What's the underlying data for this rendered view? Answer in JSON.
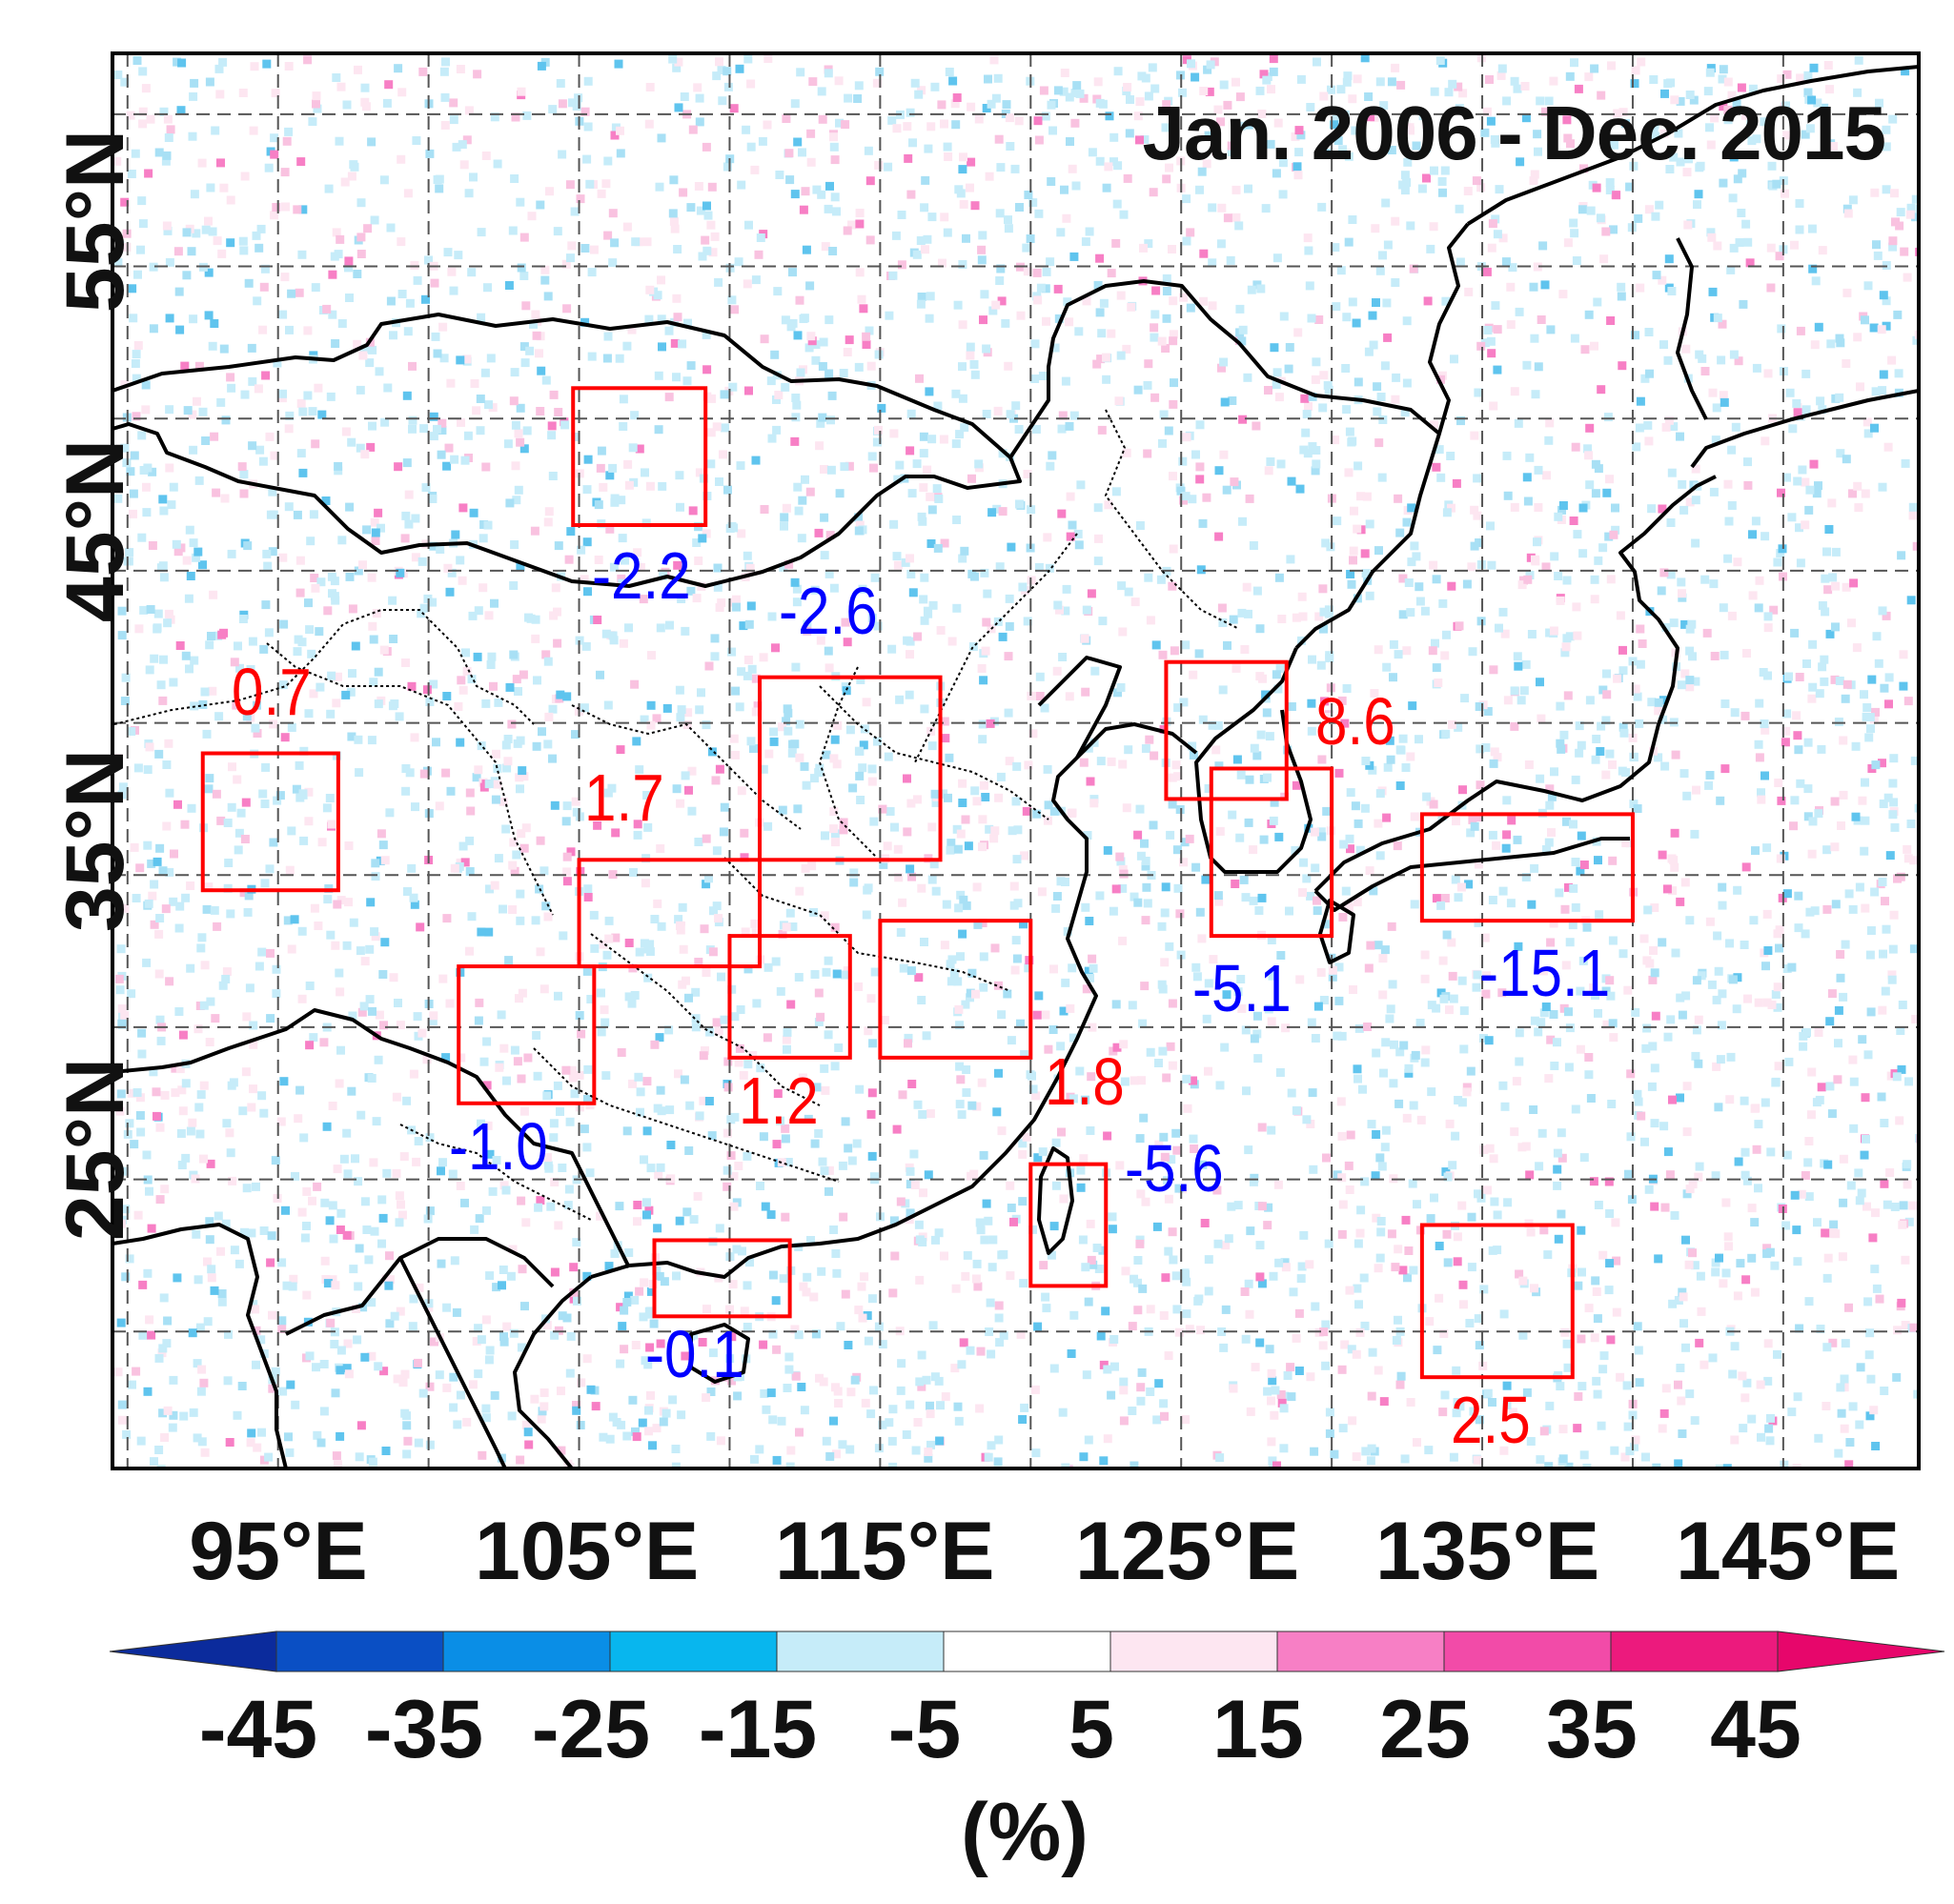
{
  "map": {
    "title": "Jan. 2006 - Dec. 2015",
    "lon_ticks": [
      "95°E",
      "105°E",
      "115°E",
      "125°E",
      "135°E",
      "145°E"
    ],
    "lat_ticks": [
      "55°N",
      "45°N",
      "35°N",
      "25°N"
    ],
    "extent": {
      "lon_min": 89.5,
      "lon_max": 149.5,
      "lat_min": 15.5,
      "lat_max": 62
    },
    "grid": true,
    "colors": {
      "positive_label": "#ff0000",
      "negative_label": "#0000ff",
      "box": "#ff0000",
      "coast": "#000000"
    }
  },
  "regions": [
    {
      "value": "-2.2",
      "sign": "negative",
      "lon": [
        104.8,
        109.2
      ],
      "lat": [
        46.5,
        51.0
      ]
    },
    {
      "value": "-2.6",
      "sign": "negative",
      "lon": [
        111.0,
        117.0
      ],
      "lat": [
        35.5,
        41.5
      ]
    },
    {
      "value": "0.7",
      "sign": "positive",
      "lon": [
        92.5,
        97.0
      ],
      "lat": [
        34.5,
        39.0
      ]
    },
    {
      "value": "1.7",
      "sign": "positive",
      "lon": [
        105.0,
        111.0
      ],
      "lat": [
        32.0,
        35.5
      ]
    },
    {
      "value": "8.6",
      "sign": "positive",
      "lon": [
        124.5,
        128.5
      ],
      "lat": [
        37.5,
        42.0
      ]
    },
    {
      "value": "-5.1",
      "sign": "negative",
      "lon": [
        126.0,
        130.0
      ],
      "lat": [
        33.0,
        38.5
      ]
    },
    {
      "value": "-15.1",
      "sign": "negative",
      "lon": [
        133.0,
        140.0
      ],
      "lat": [
        33.5,
        37.0
      ]
    },
    {
      "value": "-1.0",
      "sign": "negative",
      "lon": [
        101.0,
        105.5
      ],
      "lat": [
        27.5,
        32.0
      ]
    },
    {
      "value": "1.2",
      "sign": "positive",
      "lon": [
        110.0,
        114.0
      ],
      "lat": [
        29.0,
        33.0
      ]
    },
    {
      "value": "1.8",
      "sign": "positive",
      "lon": [
        115.0,
        120.0
      ],
      "lat": [
        29.0,
        33.5
      ]
    },
    {
      "value": "-0.1",
      "sign": "negative",
      "lon": [
        107.5,
        112.0
      ],
      "lat": [
        20.5,
        23.0
      ]
    },
    {
      "value": "-5.6",
      "sign": "negative",
      "lon": [
        120.0,
        122.5
      ],
      "lat": [
        21.5,
        25.5
      ]
    },
    {
      "value": "2.5",
      "sign": "positive",
      "lon": [
        133.0,
        138.0
      ],
      "lat": [
        18.5,
        23.5
      ]
    }
  ],
  "colorbar": {
    "ticks": [
      "-45",
      "-35",
      "-25",
      "-15",
      "-5",
      "5",
      "15",
      "25",
      "35",
      "45"
    ],
    "unit": "(%)",
    "colors": [
      "#0b2b9c",
      "#0a4fc4",
      "#0a8ee6",
      "#08b6ee",
      "#c6ecf9",
      "#ffffff",
      "#fde6f1",
      "#f77fc5",
      "#f24ba8",
      "#ec1a7d",
      "#e7066b"
    ]
  }
}
